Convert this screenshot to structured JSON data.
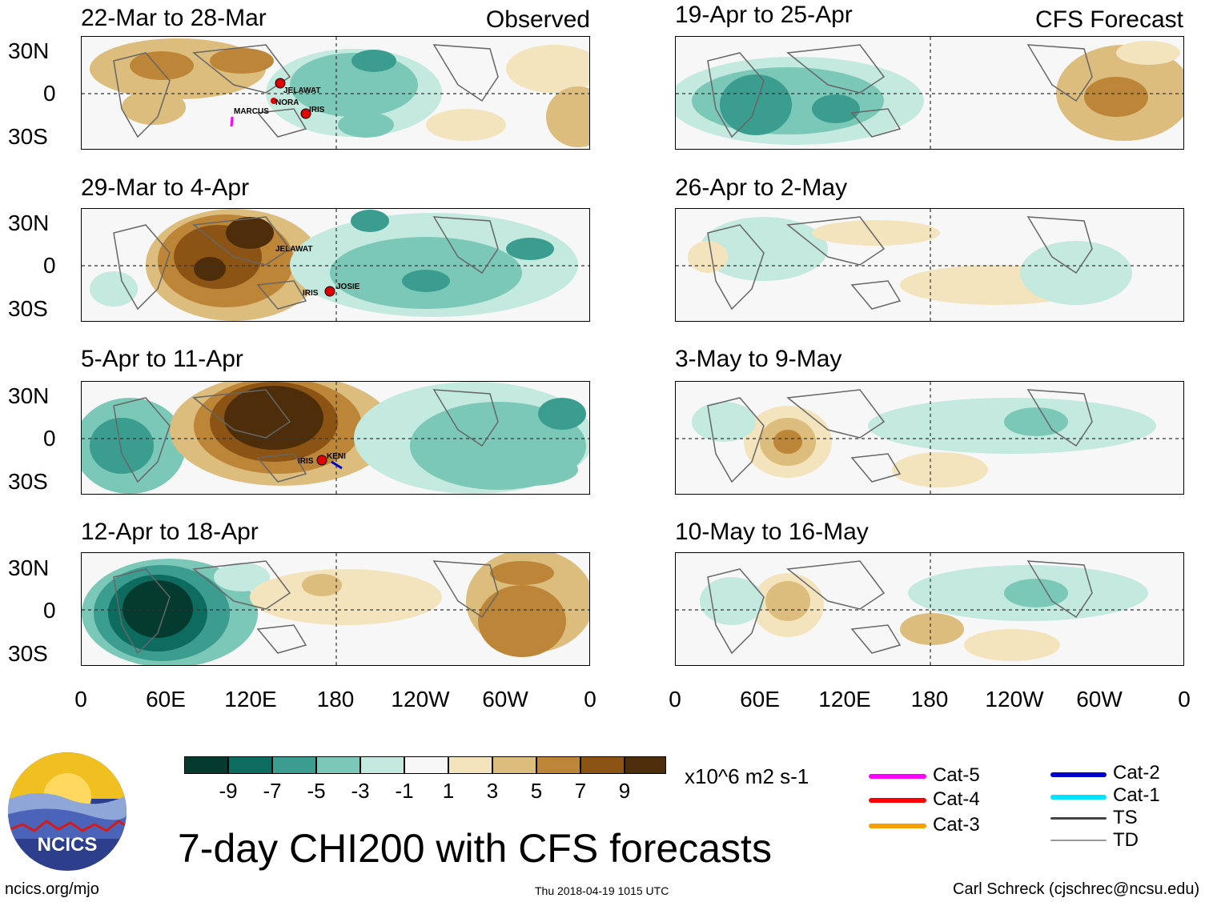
{
  "colors": {
    "green_dark": "#053a2e",
    "green_mid": "#2f8f83",
    "green_light": "#a8dccf",
    "brown_dark": "#4e2e0a",
    "brown_mid": "#a56b1f",
    "tan_light": "#f3e3bd",
    "ts_gray": "#444444",
    "td_gray": "#999999"
  },
  "left_header_label": "Observed",
  "right_header_label": "CFS Forecast",
  "panels_left": [
    {
      "title": "22-Mar to 28-Mar",
      "storms": [
        "JELAWAT",
        "NORA",
        "IRIS",
        "MARCUS"
      ]
    },
    {
      "title": "29-Mar to 4-Apr",
      "storms": [
        "JELAWAT",
        "IRIS",
        "JOSIE"
      ]
    },
    {
      "title": "5-Apr to 11-Apr",
      "storms": [
        "IRIS",
        "KENI"
      ]
    },
    {
      "title": "12-Apr to 18-Apr",
      "storms": []
    }
  ],
  "panels_right": [
    {
      "title": "19-Apr to 25-Apr"
    },
    {
      "title": "26-Apr to 2-May"
    },
    {
      "title": "3-May to 9-May"
    },
    {
      "title": "10-May to 16-May"
    }
  ],
  "lat_labels": [
    "30N",
    "0",
    "30S"
  ],
  "lon_labels": [
    "0",
    "60E",
    "120E",
    "180",
    "120W",
    "60W",
    "0"
  ],
  "colorbar": {
    "colors": [
      "#053a2e",
      "#0d6b60",
      "#3a9d90",
      "#7cc8b8",
      "#c4e9df",
      "#f7f7f7",
      "#f4e4bd",
      "#dcbd7d",
      "#bd8538",
      "#8c5414",
      "#4e2e0a"
    ],
    "labels": [
      "-9",
      "-7",
      "-5",
      "-3",
      "-1",
      "1",
      "3",
      "5",
      "7",
      "9"
    ],
    "units": "x10^6 m2 s-1"
  },
  "legend": [
    {
      "label": "Cat-5",
      "color": "#ff00ff"
    },
    {
      "label": "Cat-4",
      "color": "#ff0000"
    },
    {
      "label": "Cat-3",
      "color": "#f5a000"
    },
    {
      "label": "Cat-2",
      "color": "#0000cc"
    },
    {
      "label": "Cat-1",
      "color": "#00e5ff"
    },
    {
      "label": "TS",
      "color": "#444444"
    },
    {
      "label": "TD",
      "color": "#999999"
    }
  ],
  "logo_text": "NCICS",
  "main_title": "7-day CHI200 with CFS forecasts",
  "footer_left": "ncics.org/mjo",
  "footer_center": "Thu 2018-04-19 1015 UTC",
  "footer_right": "Carl Schreck (cjschrec@ncsu.edu)"
}
